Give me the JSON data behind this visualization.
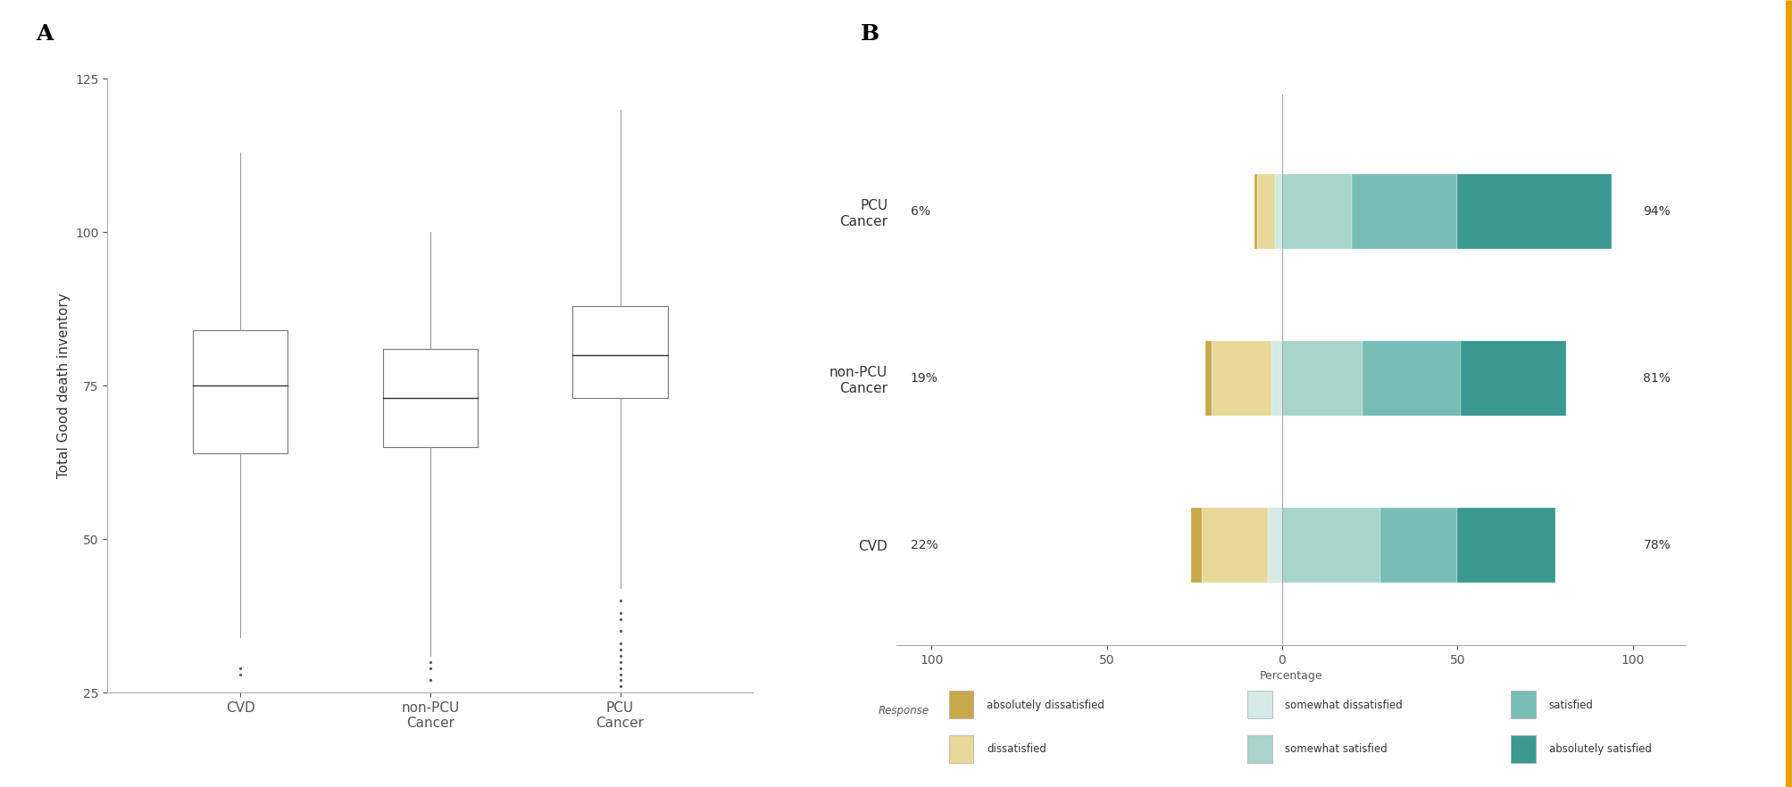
{
  "panel_A_label": "A",
  "panel_B_label": "B",
  "boxplot_ylabel": "Total Good death inventory",
  "boxplot_xlabels": [
    "CVD",
    "non-PCU\nCancer",
    "PCU\nCancer"
  ],
  "boxplot_ylim": [
    25,
    125
  ],
  "boxplot_yticks": [
    25,
    50,
    75,
    100,
    125
  ],
  "cvd": {
    "q1": 64,
    "median": 75,
    "q3": 84,
    "whisker_low": 34,
    "whisker_high": 113,
    "fliers": [
      28,
      29
    ]
  },
  "non_pcu": {
    "q1": 65,
    "median": 73,
    "q3": 81,
    "whisker_low": 31,
    "whisker_high": 100,
    "fliers": [
      27,
      29,
      30
    ]
  },
  "pcu": {
    "q1": 73,
    "median": 80,
    "q3": 88,
    "whisker_low": 42,
    "whisker_high": 120,
    "fliers": [
      26,
      27,
      28,
      29,
      30,
      31,
      32,
      33,
      35,
      37,
      38,
      40
    ]
  },
  "bar_categories": [
    "PCU\nCancer",
    "non-PCU\nCancer",
    "CVD"
  ],
  "bar_left_labels": [
    "6%",
    "19%",
    "22%"
  ],
  "bar_right_labels": [
    "94%",
    "81%",
    "78%"
  ],
  "segments": {
    "absolutely_dissatisfied": {
      "color": "#C8A84B",
      "label": "absolutely dissatisfied",
      "values": [
        -1,
        -2,
        -3
      ]
    },
    "dissatisfied": {
      "color": "#E8D89A",
      "label": "dissatisfied",
      "values": [
        -5,
        -17,
        -19
      ]
    },
    "somewhat_dissatisfied": {
      "color": "#D4EAE4",
      "label": "somewhat dissatisfied",
      "values": [
        -2,
        -3,
        -4
      ]
    },
    "somewhat_satisfied": {
      "color": "#A8D4CC",
      "label": "somewhat satisfied",
      "values": [
        20,
        23,
        28
      ]
    },
    "satisfied": {
      "color": "#78BDB4",
      "label": "satisfied",
      "values": [
        30,
        28,
        22
      ]
    },
    "absolutely_satisfied": {
      "color": "#3A9990",
      "label": "absolutely satisfied",
      "values": [
        44,
        30,
        28
      ]
    }
  },
  "bar_xlabel": "Percentage",
  "bar_xlim": [
    -110,
    115
  ],
  "bar_xticks": [
    -100,
    -50,
    0,
    50,
    100
  ],
  "bar_xticklabels": [
    "100",
    "50",
    "0",
    "50",
    "100"
  ],
  "legend_title": "Response",
  "background_color": "#ffffff",
  "box_color": "#555555",
  "whisker_color": "#888888",
  "border_orange": "#E8A000"
}
